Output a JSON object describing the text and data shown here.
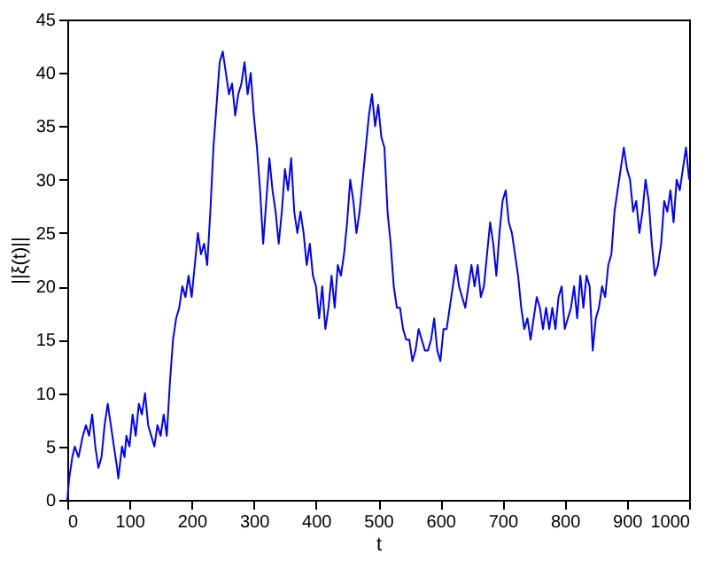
{
  "chart_data": {
    "type": "line",
    "xlabel": "t",
    "ylabel": "||ξ(t)||",
    "grid": false,
    "line_style": "solid",
    "marker": "none",
    "xlim": [
      0,
      1000
    ],
    "ylim": [
      0,
      45
    ],
    "xticks": [
      0,
      100,
      200,
      300,
      400,
      500,
      600,
      700,
      800,
      900,
      1000
    ],
    "yticks": [
      0,
      5,
      10,
      15,
      20,
      25,
      30,
      35,
      40,
      45
    ],
    "x": [
      0,
      3,
      8,
      12,
      18,
      25,
      30,
      35,
      40,
      45,
      50,
      55,
      60,
      65,
      70,
      75,
      80,
      82,
      88,
      92,
      95,
      100,
      105,
      110,
      115,
      120,
      125,
      130,
      135,
      140,
      145,
      150,
      155,
      160,
      165,
      170,
      175,
      180,
      185,
      190,
      195,
      200,
      205,
      210,
      215,
      220,
      225,
      230,
      235,
      240,
      245,
      250,
      255,
      260,
      265,
      270,
      275,
      280,
      285,
      290,
      295,
      300,
      305,
      310,
      315,
      320,
      325,
      330,
      335,
      340,
      345,
      350,
      355,
      360,
      365,
      370,
      375,
      380,
      385,
      390,
      395,
      400,
      405,
      410,
      415,
      420,
      425,
      430,
      435,
      440,
      445,
      450,
      455,
      460,
      465,
      470,
      475,
      480,
      485,
      490,
      495,
      500,
      505,
      510,
      515,
      520,
      525,
      530,
      535,
      540,
      545,
      550,
      555,
      560,
      565,
      570,
      575,
      580,
      585,
      590,
      595,
      600,
      605,
      610,
      615,
      620,
      625,
      630,
      635,
      640,
      645,
      650,
      655,
      660,
      665,
      670,
      675,
      680,
      685,
      690,
      695,
      700,
      705,
      710,
      715,
      720,
      725,
      730,
      735,
      740,
      745,
      750,
      755,
      760,
      765,
      770,
      775,
      780,
      785,
      790,
      795,
      800,
      805,
      810,
      815,
      820,
      825,
      830,
      835,
      840,
      845,
      850,
      855,
      860,
      865,
      870,
      875,
      880,
      885,
      890,
      895,
      900,
      905,
      910,
      915,
      920,
      925,
      930,
      935,
      940,
      945,
      950,
      955,
      960,
      965,
      970,
      975,
      980,
      985,
      990,
      995,
      1000
    ],
    "series": [
      {
        "color": "#0000ff",
        "values": [
          0,
          2,
          4,
          5,
          4,
          6,
          7,
          6,
          8,
          5,
          3,
          4,
          7,
          9,
          7,
          5,
          3,
          2,
          5,
          4,
          6,
          5,
          8,
          6,
          9,
          8,
          10,
          7,
          6,
          5,
          7,
          6,
          8,
          6,
          11,
          15,
          17,
          18,
          20,
          19,
          21,
          19,
          22,
          25,
          23,
          24,
          22,
          27,
          33,
          37,
          41,
          42,
          40,
          38,
          39,
          36,
          38,
          39,
          41,
          38,
          40,
          36,
          33,
          29,
          24,
          28,
          32,
          29,
          27,
          24,
          27,
          31,
          29,
          32,
          27,
          25,
          27,
          25,
          22,
          24,
          21,
          20,
          17,
          20,
          16,
          18,
          21,
          18,
          22,
          21,
          23,
          26,
          30,
          28,
          25,
          27,
          30,
          33,
          36,
          38,
          35,
          37,
          34,
          33,
          27,
          24,
          20,
          18,
          18,
          16,
          15,
          15,
          13,
          14,
          16,
          15,
          14,
          14,
          15,
          17,
          14,
          13,
          16,
          16,
          18,
          20,
          22,
          20,
          19,
          18,
          20,
          22,
          20,
          22,
          19,
          20,
          23,
          26,
          24,
          21,
          25,
          28,
          29,
          26,
          25,
          23,
          21,
          18,
          16,
          17,
          15,
          17,
          19,
          18,
          16,
          18,
          16,
          18,
          16,
          19,
          20,
          16,
          17,
          18,
          20,
          17,
          21,
          18,
          21,
          20,
          14,
          17,
          18,
          20,
          19,
          22,
          23,
          27,
          29,
          31,
          33,
          31,
          30,
          27,
          28,
          25,
          27,
          30,
          28,
          24,
          21,
          22,
          24,
          28,
          27,
          29,
          26,
          30,
          29,
          31,
          33,
          30
        ]
      }
    ]
  }
}
